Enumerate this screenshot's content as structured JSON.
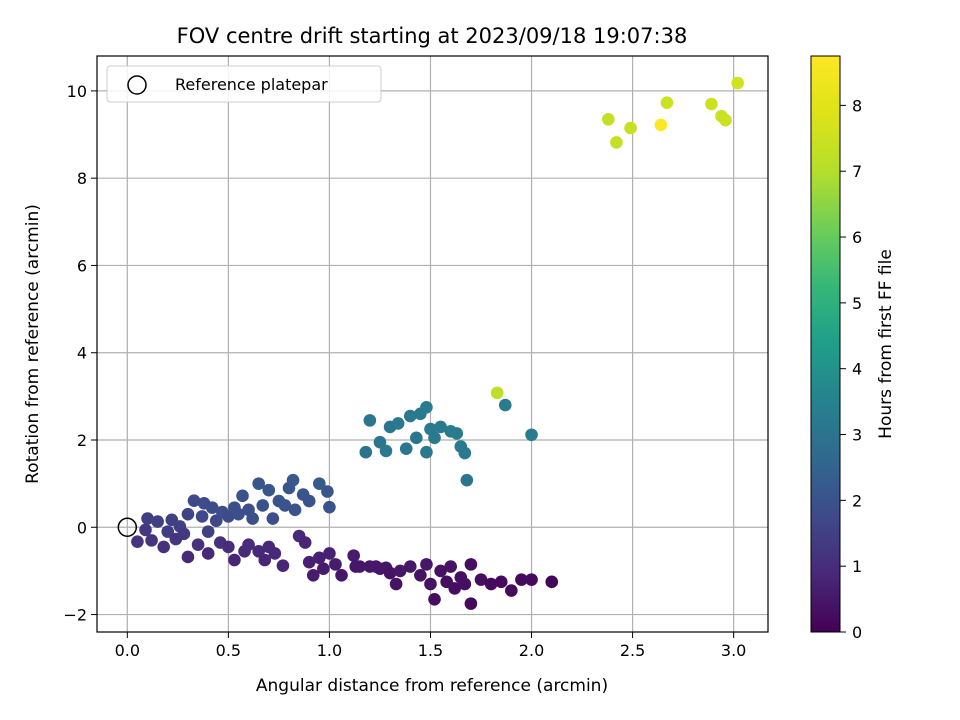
{
  "chart_data": {
    "type": "scatter",
    "title": "FOV centre drift starting at 2023/09/18 19:07:38",
    "xlabel": "Angular distance from reference (arcmin)",
    "ylabel": "Rotation from reference (arcmin)",
    "xlim": [
      -0.15,
      3.17
    ],
    "ylim": [
      -2.4,
      10.8
    ],
    "xticks": [
      "0.0",
      "0.5",
      "1.0",
      "1.5",
      "2.0",
      "2.5",
      "3.0"
    ],
    "xtick_values": [
      0,
      0.5,
      1.0,
      1.5,
      2.0,
      2.5,
      3.0
    ],
    "yticks": [
      "−2",
      "0",
      "2",
      "4",
      "6",
      "8",
      "10"
    ],
    "ytick_values": [
      -2,
      0,
      2,
      4,
      6,
      8,
      10
    ],
    "grid": true,
    "colormap": "viridis",
    "colorbar": {
      "label": "Hours from first FF file",
      "range": [
        0,
        8.75
      ],
      "ticks": [
        "0",
        "1",
        "2",
        "3",
        "4",
        "5",
        "6",
        "7",
        "8"
      ],
      "tick_values": [
        0,
        1,
        2,
        3,
        4,
        5,
        6,
        7,
        8
      ]
    },
    "legend": {
      "position": "top-left",
      "label": "Reference platepar"
    },
    "reference_point": {
      "x": 0.0,
      "y": 0.0
    },
    "points": [
      {
        "x": 0.05,
        "y": -0.33,
        "c": 1.2
      },
      {
        "x": 0.09,
        "y": -0.06,
        "c": 1.3
      },
      {
        "x": 0.1,
        "y": 0.2,
        "c": 1.4
      },
      {
        "x": 0.12,
        "y": -0.3,
        "c": 1.2
      },
      {
        "x": 0.15,
        "y": 0.13,
        "c": 1.5
      },
      {
        "x": 0.18,
        "y": -0.45,
        "c": 1.1
      },
      {
        "x": 0.2,
        "y": -0.1,
        "c": 1.4
      },
      {
        "x": 0.22,
        "y": 0.17,
        "c": 1.5
      },
      {
        "x": 0.24,
        "y": -0.27,
        "c": 1.2
      },
      {
        "x": 0.26,
        "y": 0.02,
        "c": 1.5
      },
      {
        "x": 0.28,
        "y": -0.15,
        "c": 1.3
      },
      {
        "x": 0.3,
        "y": 0.3,
        "c": 1.6
      },
      {
        "x": 0.3,
        "y": -0.68,
        "c": 0.9
      },
      {
        "x": 0.33,
        "y": 0.61,
        "c": 1.7
      },
      {
        "x": 0.35,
        "y": -0.4,
        "c": 1.1
      },
      {
        "x": 0.37,
        "y": 0.25,
        "c": 1.7
      },
      {
        "x": 0.38,
        "y": 0.55,
        "c": 1.8
      },
      {
        "x": 0.4,
        "y": -0.1,
        "c": 1.5
      },
      {
        "x": 0.4,
        "y": -0.6,
        "c": 0.9
      },
      {
        "x": 0.42,
        "y": 0.45,
        "c": 1.8
      },
      {
        "x": 0.44,
        "y": 0.15,
        "c": 1.7
      },
      {
        "x": 0.46,
        "y": -0.35,
        "c": 1.1
      },
      {
        "x": 0.47,
        "y": 0.35,
        "c": 1.9
      },
      {
        "x": 0.5,
        "y": 0.25,
        "c": 1.8
      },
      {
        "x": 0.5,
        "y": -0.45,
        "c": 1.0
      },
      {
        "x": 0.53,
        "y": 0.45,
        "c": 1.9
      },
      {
        "x": 0.53,
        "y": -0.75,
        "c": 0.8
      },
      {
        "x": 0.55,
        "y": 0.3,
        "c": 1.9
      },
      {
        "x": 0.57,
        "y": 0.72,
        "c": 2.0
      },
      {
        "x": 0.58,
        "y": -0.55,
        "c": 0.9
      },
      {
        "x": 0.6,
        "y": 0.4,
        "c": 1.9
      },
      {
        "x": 0.6,
        "y": -0.4,
        "c": 1.0
      },
      {
        "x": 0.62,
        "y": 0.2,
        "c": 1.9
      },
      {
        "x": 0.65,
        "y": 1.0,
        "c": 2.1
      },
      {
        "x": 0.65,
        "y": -0.55,
        "c": 0.9
      },
      {
        "x": 0.67,
        "y": 0.5,
        "c": 2.0
      },
      {
        "x": 0.68,
        "y": -0.75,
        "c": 0.8
      },
      {
        "x": 0.7,
        "y": 0.85,
        "c": 2.1
      },
      {
        "x": 0.7,
        "y": -0.45,
        "c": 0.9
      },
      {
        "x": 0.72,
        "y": 0.2,
        "c": 1.9
      },
      {
        "x": 0.73,
        "y": -0.6,
        "c": 0.9
      },
      {
        "x": 0.75,
        "y": 0.6,
        "c": 2.0
      },
      {
        "x": 0.77,
        "y": -0.88,
        "c": 0.8
      },
      {
        "x": 0.78,
        "y": 0.5,
        "c": 2.0
      },
      {
        "x": 0.8,
        "y": 0.9,
        "c": 2.1
      },
      {
        "x": 0.82,
        "y": 1.08,
        "c": 2.2
      },
      {
        "x": 0.83,
        "y": 0.4,
        "c": 2.0
      },
      {
        "x": 0.85,
        "y": -0.2,
        "c": 0.9
      },
      {
        "x": 0.87,
        "y": 0.75,
        "c": 2.1
      },
      {
        "x": 0.88,
        "y": -0.35,
        "c": 0.8
      },
      {
        "x": 0.9,
        "y": 0.6,
        "c": 2.0
      },
      {
        "x": 0.9,
        "y": -0.8,
        "c": 0.7
      },
      {
        "x": 0.92,
        "y": -1.1,
        "c": 0.6
      },
      {
        "x": 0.95,
        "y": 1.0,
        "c": 2.2
      },
      {
        "x": 0.95,
        "y": -0.7,
        "c": 0.7
      },
      {
        "x": 0.97,
        "y": -0.95,
        "c": 0.6
      },
      {
        "x": 0.99,
        "y": 0.82,
        "c": 2.1
      },
      {
        "x": 1.0,
        "y": 0.46,
        "c": 2.0
      },
      {
        "x": 1.0,
        "y": -0.6,
        "c": 0.7
      },
      {
        "x": 1.03,
        "y": -0.85,
        "c": 0.6
      },
      {
        "x": 1.06,
        "y": -1.1,
        "c": 0.5
      },
      {
        "x": 1.12,
        "y": -0.65,
        "c": 0.6
      },
      {
        "x": 1.13,
        "y": -0.9,
        "c": 0.5
      },
      {
        "x": 1.15,
        "y": -0.9,
        "c": 0.5
      },
      {
        "x": 1.2,
        "y": -0.9,
        "c": 0.5
      },
      {
        "x": 1.23,
        "y": -0.9,
        "c": 0.5
      },
      {
        "x": 1.25,
        "y": -0.95,
        "c": 0.5
      },
      {
        "x": 1.28,
        "y": -0.93,
        "c": 0.5
      },
      {
        "x": 1.3,
        "y": -1.05,
        "c": 0.4
      },
      {
        "x": 1.33,
        "y": -1.3,
        "c": 0.4
      },
      {
        "x": 1.35,
        "y": -1.0,
        "c": 0.5
      },
      {
        "x": 1.4,
        "y": -0.9,
        "c": 0.5
      },
      {
        "x": 1.45,
        "y": -1.1,
        "c": 0.4
      },
      {
        "x": 1.48,
        "y": -0.85,
        "c": 0.5
      },
      {
        "x": 1.5,
        "y": -1.3,
        "c": 0.4
      },
      {
        "x": 1.52,
        "y": -1.65,
        "c": 0.3
      },
      {
        "x": 1.55,
        "y": -1.0,
        "c": 0.4
      },
      {
        "x": 1.58,
        "y": -1.25,
        "c": 0.3
      },
      {
        "x": 1.6,
        "y": -0.9,
        "c": 0.4
      },
      {
        "x": 1.62,
        "y": -1.4,
        "c": 0.3
      },
      {
        "x": 1.65,
        "y": -1.15,
        "c": 0.3
      },
      {
        "x": 1.67,
        "y": -1.3,
        "c": 0.3
      },
      {
        "x": 1.7,
        "y": -0.85,
        "c": 0.3
      },
      {
        "x": 1.7,
        "y": -1.75,
        "c": 0.2
      },
      {
        "x": 1.75,
        "y": -1.2,
        "c": 0.3
      },
      {
        "x": 1.8,
        "y": -1.3,
        "c": 0.2
      },
      {
        "x": 1.85,
        "y": -1.25,
        "c": 0.2
      },
      {
        "x": 1.9,
        "y": -1.45,
        "c": 0.2
      },
      {
        "x": 1.95,
        "y": -1.2,
        "c": 0.2
      },
      {
        "x": 2.0,
        "y": -1.2,
        "c": 0.2
      },
      {
        "x": 2.1,
        "y": -1.25,
        "c": 0.1
      },
      {
        "x": 1.18,
        "y": 1.72,
        "c": 3.0
      },
      {
        "x": 1.2,
        "y": 2.45,
        "c": 3.1
      },
      {
        "x": 1.25,
        "y": 1.95,
        "c": 3.1
      },
      {
        "x": 1.28,
        "y": 1.75,
        "c": 3.2
      },
      {
        "x": 1.3,
        "y": 2.3,
        "c": 3.1
      },
      {
        "x": 1.34,
        "y": 2.38,
        "c": 3.2
      },
      {
        "x": 1.38,
        "y": 1.8,
        "c": 3.1
      },
      {
        "x": 1.4,
        "y": 2.55,
        "c": 3.2
      },
      {
        "x": 1.43,
        "y": 2.05,
        "c": 3.1
      },
      {
        "x": 1.45,
        "y": 2.6,
        "c": 3.2
      },
      {
        "x": 1.48,
        "y": 2.75,
        "c": 3.3
      },
      {
        "x": 1.48,
        "y": 1.72,
        "c": 3.2
      },
      {
        "x": 1.5,
        "y": 2.25,
        "c": 3.2
      },
      {
        "x": 1.52,
        "y": 2.05,
        "c": 3.2
      },
      {
        "x": 1.55,
        "y": 2.3,
        "c": 3.2
      },
      {
        "x": 1.6,
        "y": 2.2,
        "c": 3.3
      },
      {
        "x": 1.63,
        "y": 2.15,
        "c": 3.3
      },
      {
        "x": 1.65,
        "y": 1.85,
        "c": 3.2
      },
      {
        "x": 1.67,
        "y": 1.7,
        "c": 3.2
      },
      {
        "x": 1.68,
        "y": 1.08,
        "c": 3.1
      },
      {
        "x": 1.87,
        "y": 2.8,
        "c": 3.3
      },
      {
        "x": 2.0,
        "y": 2.12,
        "c": 3.3
      },
      {
        "x": 1.83,
        "y": 3.08,
        "c": 7.2
      },
      {
        "x": 2.38,
        "y": 9.35,
        "c": 7.3
      },
      {
        "x": 2.42,
        "y": 8.82,
        "c": 7.3
      },
      {
        "x": 2.49,
        "y": 9.15,
        "c": 7.4
      },
      {
        "x": 2.64,
        "y": 9.22,
        "c": 8.7
      },
      {
        "x": 2.67,
        "y": 9.73,
        "c": 7.5
      },
      {
        "x": 2.89,
        "y": 9.7,
        "c": 7.5
      },
      {
        "x": 2.94,
        "y": 9.42,
        "c": 7.5
      },
      {
        "x": 2.96,
        "y": 9.33,
        "c": 7.5
      },
      {
        "x": 3.02,
        "y": 10.18,
        "c": 7.6
      }
    ]
  }
}
